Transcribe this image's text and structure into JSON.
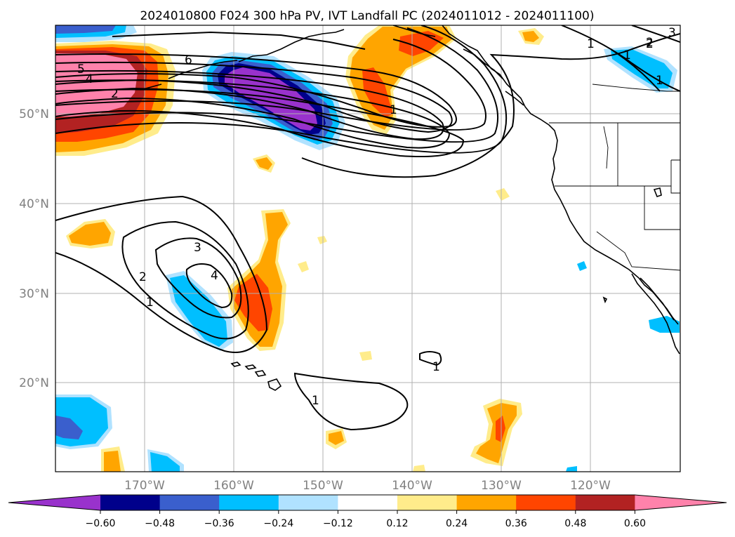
{
  "title": "2024010800 F024 300 hPa PV, IVT Landfall PC (2024011012 - 2024011100)",
  "lat_labels": [
    "50°N",
    "40°N",
    "30°N",
    "20°N"
  ],
  "lon_labels": [
    "170°W",
    "160°W",
    "150°W",
    "140°W",
    "130°W",
    "120°W"
  ],
  "contour_labels": [
    "6",
    "5",
    "4",
    "2",
    "1",
    "1",
    "1",
    "2",
    "3",
    "4",
    "2",
    "1",
    "1",
    "1",
    "1",
    "2",
    "3"
  ],
  "colorbar": {
    "ticks": [
      "−0.60",
      "−0.48",
      "−0.36",
      "−0.24",
      "−0.12",
      "0.12",
      "0.24",
      "0.36",
      "0.48",
      "0.60"
    ],
    "colors": [
      "#9932cc",
      "#00008b",
      "#3a5fcd",
      "#00bfff",
      "#b0e2ff",
      "#ffffff",
      "#ffec8b",
      "#ffa500",
      "#ff4500",
      "#b22222",
      "#ff82ab"
    ]
  },
  "palette": {
    "purple": "#9932cc",
    "navy": "#00008b",
    "royal": "#3a5fcd",
    "sky": "#00bfff",
    "pale_blue": "#b0e2ff",
    "pale_yellow": "#ffec8b",
    "orange": "#ffa500",
    "red_orange": "#ff4500",
    "firebrick": "#b22222",
    "pink": "#ff82ab"
  }
}
